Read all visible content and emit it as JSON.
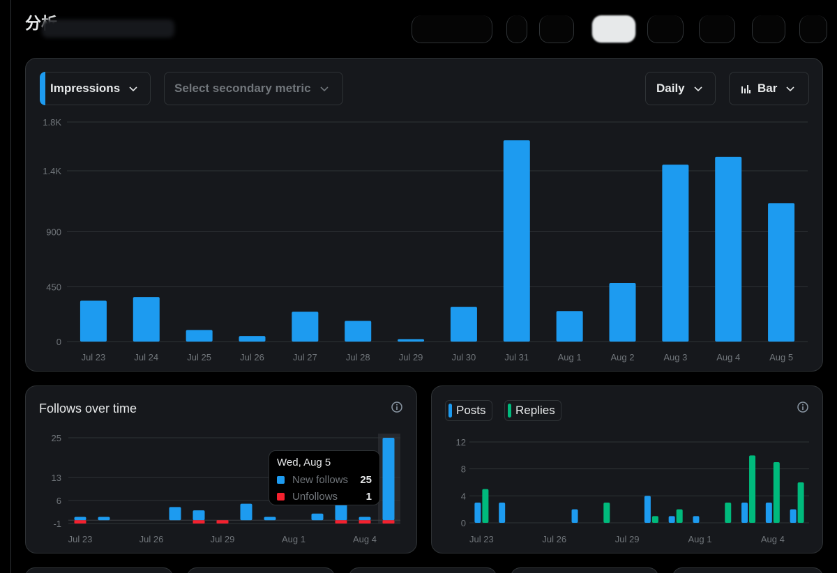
{
  "page": {
    "title": "分析"
  },
  "colors": {
    "accent": "#1d9bf0",
    "unfollow": "#f4212e",
    "replies": "#00ba7c",
    "grid": "#2f3336",
    "axis_text": "#71767b"
  },
  "main_chart": {
    "primary_metric": "Impressions",
    "secondary_metric_placeholder": "Select secondary metric",
    "interval": "Daily",
    "chart_type_label": "Bar",
    "chart_type_icon": "bar-chart-icon"
  },
  "follows": {
    "title": "Follows over time",
    "tooltip": {
      "title": "Wed, Aug 5",
      "new_label": "New follows",
      "new_value": "25",
      "unf_label": "Unfollows",
      "unf_value": "1"
    }
  },
  "posts_replies": {
    "legend": [
      {
        "label": "Posts",
        "color": "#1d9bf0"
      },
      {
        "label": "Replies",
        "color": "#00ba7c"
      }
    ]
  },
  "chart_data": [
    {
      "type": "bar",
      "categories": [
        "Jul 23",
        "Jul 24",
        "Jul 25",
        "Jul 26",
        "Jul 27",
        "Jul 28",
        "Jul 29",
        "Jul 30",
        "Jul 31",
        "Aug 1",
        "Aug 2",
        "Aug 3",
        "Aug 4",
        "Aug 5"
      ],
      "series": [
        {
          "name": "Impressions",
          "values": [
            335,
            365,
            95,
            45,
            245,
            170,
            20,
            285,
            1650,
            250,
            480,
            1450,
            1515,
            1135
          ],
          "color": "#1d9bf0"
        }
      ],
      "yticks": [
        0,
        450,
        900,
        1400,
        1800
      ],
      "ytick_labels": [
        "0",
        "450",
        "900",
        "1.4K",
        "1.8K"
      ],
      "ylim": [
        0,
        1800
      ],
      "grid": true
    },
    {
      "type": "bar",
      "categories": [
        "Jul 23",
        "Jul 24",
        "Jul 25",
        "Jul 26",
        "Jul 27",
        "Jul 28",
        "Jul 29",
        "Jul 30",
        "Jul 31",
        "Aug 1",
        "Aug 2",
        "Aug 3",
        "Aug 4",
        "Aug 5"
      ],
      "xtick_labels": [
        "Jul 23",
        "Jul 26",
        "Jul 29",
        "Aug 1",
        "Aug 4"
      ],
      "series": [
        {
          "name": "New follows",
          "values": [
            1,
            1,
            0,
            0,
            4,
            3,
            0,
            5,
            1,
            0,
            2,
            7,
            1,
            25
          ],
          "color": "#1d9bf0"
        },
        {
          "name": "Unfollows",
          "values": [
            -1,
            0,
            0,
            0,
            0,
            -1,
            -1,
            0,
            0,
            0,
            0,
            -1,
            -1,
            -1
          ],
          "color": "#f4212e"
        }
      ],
      "yticks": [
        -1,
        6,
        13,
        25
      ],
      "ylim": [
        -1,
        25
      ],
      "highlight": "Aug 5",
      "grid": true
    },
    {
      "type": "bar",
      "categories": [
        "Jul 23",
        "Jul 24",
        "Jul 25",
        "Jul 26",
        "Jul 27",
        "Jul 28",
        "Jul 29",
        "Jul 30",
        "Jul 31",
        "Aug 1",
        "Aug 2",
        "Aug 3",
        "Aug 4",
        "Aug 5"
      ],
      "xtick_labels": [
        "Jul 23",
        "Jul 26",
        "Jul 29",
        "Aug 1",
        "Aug 4"
      ],
      "series": [
        {
          "name": "Posts",
          "values": [
            3,
            3,
            0,
            0,
            2,
            0,
            0,
            4,
            1,
            1,
            0,
            3,
            3,
            2
          ],
          "color": "#1d9bf0"
        },
        {
          "name": "Replies",
          "values": [
            5,
            0,
            0,
            0,
            0,
            3,
            0,
            1,
            2,
            0,
            3,
            10,
            9,
            6
          ],
          "color": "#00ba7c"
        }
      ],
      "yticks": [
        0,
        4,
        8,
        12
      ],
      "ylim": [
        0,
        12
      ],
      "grid": true
    }
  ]
}
